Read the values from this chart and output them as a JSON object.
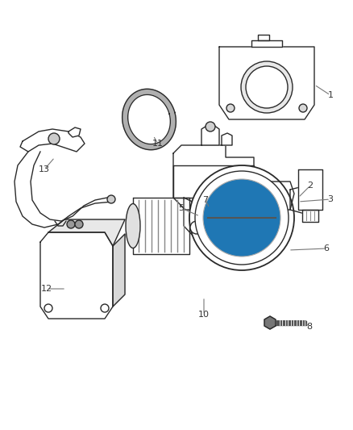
{
  "bg_color": "#ffffff",
  "line_color": "#2a2a2a",
  "label_color": "#555555",
  "leader_color": "#888888",
  "figsize": [
    4.38,
    5.33
  ],
  "dpi": 100,
  "lw": 1.0
}
